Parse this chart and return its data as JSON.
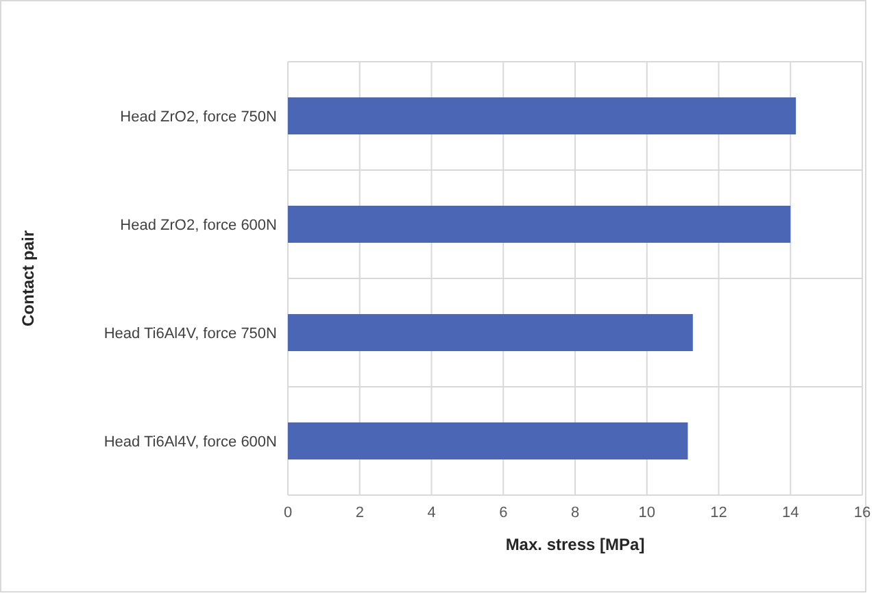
{
  "chart_data": {
    "type": "bar",
    "orientation": "horizontal",
    "xlabel": "Max. stress [MPa]",
    "ylabel": "Contact pair",
    "categories": [
      "Head ZrO2, force 750N",
      "Head ZrO2, force 600N",
      "Head Ti6Al4V, force 750N",
      "Head Ti6Al4V, force 600N"
    ],
    "values": [
      14.15,
      14.0,
      11.28,
      11.14
    ],
    "color": "#4a66b4",
    "xlim": [
      0,
      16
    ],
    "xticks": [
      0,
      2,
      4,
      6,
      8,
      10,
      12,
      14,
      16
    ],
    "grid": true
  }
}
